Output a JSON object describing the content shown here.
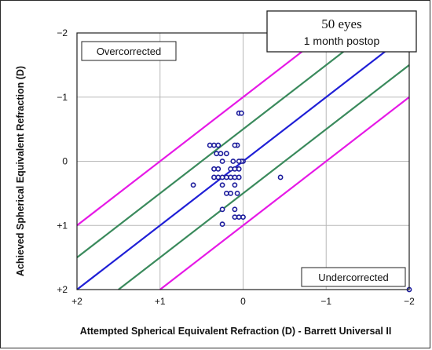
{
  "chart_data": {
    "type": "scatter",
    "title": "",
    "xlabel": "Attempted Spherical Equivalent Refraction (D) - Barrett Universal II",
    "ylabel": "Achieved Spherical Equivalent Refraction (D)",
    "xlim": [
      2,
      -2
    ],
    "ylim": [
      2,
      -2
    ],
    "x_ticks": [
      "+2",
      "+1",
      "0",
      "−1",
      "−2"
    ],
    "y_ticks": [
      "−2",
      "−1",
      "0",
      "+1",
      "+2"
    ],
    "grid": true,
    "info_box": {
      "line1": "50 eyes",
      "line2": "1 month postop"
    },
    "overcorrected_label": "Overcorrected",
    "undercorrected_label": "Undercorrected",
    "reference_lines": [
      {
        "offset": 0,
        "color": "#1f1fd6"
      },
      {
        "offset": -0.5,
        "color": "#3a8a5c"
      },
      {
        "offset": 0.5,
        "color": "#3a8a5c"
      },
      {
        "offset": -1.0,
        "color": "#e619e6"
      },
      {
        "offset": 1.0,
        "color": "#e619e6"
      }
    ],
    "point_color": "#1c1c9c",
    "points": [
      {
        "x": 0.05,
        "y": -0.75
      },
      {
        "x": 0.02,
        "y": -0.75
      },
      {
        "x": 0.07,
        "y": -0.25
      },
      {
        "x": 0.1,
        "y": -0.25
      },
      {
        "x": 0.3,
        "y": -0.25
      },
      {
        "x": 0.35,
        "y": -0.25
      },
      {
        "x": 0.4,
        "y": -0.25
      },
      {
        "x": 0.2,
        "y": -0.12
      },
      {
        "x": 0.27,
        "y": -0.12
      },
      {
        "x": 0.32,
        "y": -0.12
      },
      {
        "x": 0.0,
        "y": 0.0
      },
      {
        "x": 0.02,
        "y": 0.0
      },
      {
        "x": 0.05,
        "y": 0.0
      },
      {
        "x": 0.12,
        "y": 0.0
      },
      {
        "x": 0.25,
        "y": 0.0
      },
      {
        "x": 0.05,
        "y": 0.12
      },
      {
        "x": 0.1,
        "y": 0.12
      },
      {
        "x": 0.15,
        "y": 0.12
      },
      {
        "x": 0.3,
        "y": 0.12
      },
      {
        "x": 0.35,
        "y": 0.12
      },
      {
        "x": -0.45,
        "y": 0.25
      },
      {
        "x": 0.05,
        "y": 0.25
      },
      {
        "x": 0.1,
        "y": 0.25
      },
      {
        "x": 0.15,
        "y": 0.25
      },
      {
        "x": 0.2,
        "y": 0.25
      },
      {
        "x": 0.25,
        "y": 0.25
      },
      {
        "x": 0.3,
        "y": 0.25
      },
      {
        "x": 0.35,
        "y": 0.25
      },
      {
        "x": 0.1,
        "y": 0.37
      },
      {
        "x": 0.25,
        "y": 0.37
      },
      {
        "x": 0.6,
        "y": 0.37
      },
      {
        "x": 0.07,
        "y": 0.5
      },
      {
        "x": 0.15,
        "y": 0.5
      },
      {
        "x": 0.2,
        "y": 0.5
      },
      {
        "x": 0.1,
        "y": 0.75
      },
      {
        "x": 0.25,
        "y": 0.75
      },
      {
        "x": 0.0,
        "y": 0.87
      },
      {
        "x": 0.05,
        "y": 0.87
      },
      {
        "x": 0.1,
        "y": 0.87
      },
      {
        "x": 0.25,
        "y": 0.98
      },
      {
        "x": -2.0,
        "y": 2.0
      }
    ]
  }
}
